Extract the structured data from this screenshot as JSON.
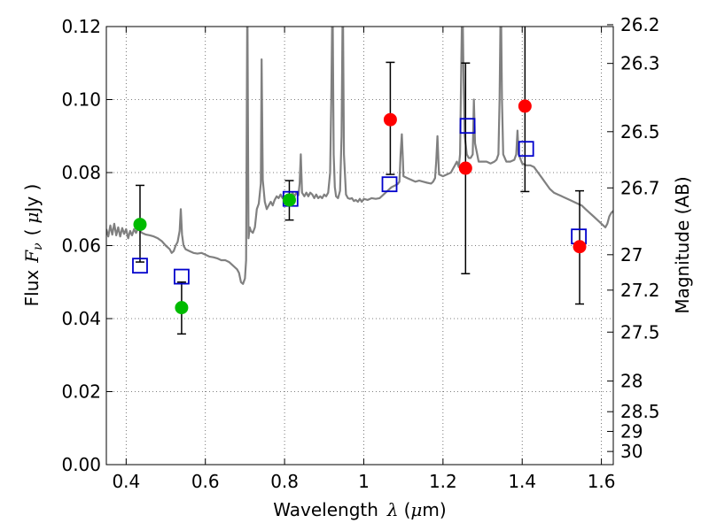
{
  "chart_data": {
    "type": "scatter",
    "xlabel": "Wavelength",
    "xlabel_symbol": "λ",
    "xlabel_unit_open": "(",
    "xlabel_unit_mu": "μ",
    "xlabel_unit_rest": "m)",
    "ylabel_prefix": "Flux",
    "ylabel_symbol": "F",
    "ylabel_symbol_sub": "ν",
    "ylabel_unit_open": "(",
    "ylabel_unit_mu": "μ",
    "ylabel_unit_rest": "Jy )",
    "y2label": "Magnitude (AB)",
    "xlim": [
      0.35,
      1.63
    ],
    "ylim": [
      0.0,
      0.12
    ],
    "grid": true,
    "x_ticks": [
      0.4,
      0.6,
      0.8,
      1.0,
      1.2,
      1.4,
      1.6
    ],
    "x_tick_labels": [
      "0.4",
      "0.6",
      "0.8",
      "1",
      "1.2",
      "1.4",
      "1.6"
    ],
    "y_ticks": [
      0.0,
      0.02,
      0.04,
      0.06,
      0.08,
      0.1,
      0.12
    ],
    "y_tick_labels": [
      "0.00",
      "0.02",
      "0.04",
      "0.06",
      "0.08",
      "0.10",
      "0.12"
    ],
    "y2_ticks": [
      {
        "label": "26.2",
        "flux": 0.1205
      },
      {
        "label": "26.3",
        "flux": 0.1099
      },
      {
        "label": "26.5",
        "flux": 0.0912
      },
      {
        "label": "26.7",
        "flux": 0.0758
      },
      {
        "label": "27",
        "flux": 0.0575
      },
      {
        "label": "27.2",
        "flux": 0.0478
      },
      {
        "label": "27.5",
        "flux": 0.0363
      },
      {
        "label": "28",
        "flux": 0.0229
      },
      {
        "label": "28.5",
        "flux": 0.0145
      },
      {
        "label": "29",
        "flux": 0.0091
      },
      {
        "label": "30",
        "flux": 0.0036
      }
    ],
    "series": [
      {
        "kind": "spectrum",
        "color": "#808080",
        "points": [
          [
            0.35,
            0.0645
          ],
          [
            0.355,
            0.0625
          ],
          [
            0.36,
            0.0655
          ],
          [
            0.365,
            0.063
          ],
          [
            0.37,
            0.066
          ],
          [
            0.375,
            0.0628
          ],
          [
            0.38,
            0.065
          ],
          [
            0.385,
            0.0625
          ],
          [
            0.39,
            0.0648
          ],
          [
            0.395,
            0.0632
          ],
          [
            0.4,
            0.0645
          ],
          [
            0.405,
            0.062
          ],
          [
            0.41,
            0.064
          ],
          [
            0.415,
            0.0628
          ],
          [
            0.42,
            0.0645
          ],
          [
            0.425,
            0.0635
          ],
          [
            0.43,
            0.0648
          ],
          [
            0.435,
            0.064
          ],
          [
            0.44,
            0.0635
          ],
          [
            0.45,
            0.063
          ],
          [
            0.46,
            0.0628
          ],
          [
            0.47,
            0.0625
          ],
          [
            0.48,
            0.062
          ],
          [
            0.49,
            0.0612
          ],
          [
            0.5,
            0.06
          ],
          [
            0.51,
            0.059
          ],
          [
            0.515,
            0.058
          ],
          [
            0.52,
            0.0585
          ],
          [
            0.525,
            0.06
          ],
          [
            0.53,
            0.061
          ],
          [
            0.535,
            0.064
          ],
          [
            0.538,
            0.07
          ],
          [
            0.541,
            0.063
          ],
          [
            0.545,
            0.06
          ],
          [
            0.55,
            0.059
          ],
          [
            0.56,
            0.0585
          ],
          [
            0.57,
            0.058
          ],
          [
            0.58,
            0.0578
          ],
          [
            0.59,
            0.058
          ],
          [
            0.6,
            0.0575
          ],
          [
            0.61,
            0.057
          ],
          [
            0.62,
            0.0568
          ],
          [
            0.63,
            0.0565
          ],
          [
            0.64,
            0.056
          ],
          [
            0.65,
            0.056
          ],
          [
            0.66,
            0.0555
          ],
          [
            0.67,
            0.0545
          ],
          [
            0.68,
            0.0535
          ],
          [
            0.685,
            0.0525
          ],
          [
            0.69,
            0.05
          ],
          [
            0.695,
            0.0495
          ],
          [
            0.7,
            0.051
          ],
          [
            0.703,
            0.056
          ],
          [
            0.706,
            0.13
          ],
          [
            0.709,
            0.062
          ],
          [
            0.712,
            0.065
          ],
          [
            0.715,
            0.064
          ],
          [
            0.72,
            0.0635
          ],
          [
            0.725,
            0.065
          ],
          [
            0.73,
            0.07
          ],
          [
            0.735,
            0.0715
          ],
          [
            0.74,
            0.077
          ],
          [
            0.742,
            0.111
          ],
          [
            0.745,
            0.078
          ],
          [
            0.75,
            0.072
          ],
          [
            0.755,
            0.07
          ],
          [
            0.76,
            0.071
          ],
          [
            0.765,
            0.072
          ],
          [
            0.77,
            0.071
          ],
          [
            0.775,
            0.0725
          ],
          [
            0.78,
            0.0735
          ],
          [
            0.785,
            0.073
          ],
          [
            0.79,
            0.074
          ],
          [
            0.795,
            0.073
          ],
          [
            0.8,
            0.0735
          ],
          [
            0.805,
            0.0728
          ],
          [
            0.81,
            0.074
          ],
          [
            0.815,
            0.073
          ],
          [
            0.82,
            0.0745
          ],
          [
            0.825,
            0.0735
          ],
          [
            0.83,
            0.0745
          ],
          [
            0.835,
            0.0738
          ],
          [
            0.838,
            0.077
          ],
          [
            0.841,
            0.085
          ],
          [
            0.844,
            0.0745
          ],
          [
            0.85,
            0.0735
          ],
          [
            0.855,
            0.0745
          ],
          [
            0.86,
            0.0735
          ],
          [
            0.865,
            0.0745
          ],
          [
            0.87,
            0.074
          ],
          [
            0.875,
            0.073
          ],
          [
            0.88,
            0.074
          ],
          [
            0.885,
            0.073
          ],
          [
            0.89,
            0.0735
          ],
          [
            0.895,
            0.073
          ],
          [
            0.9,
            0.074
          ],
          [
            0.905,
            0.0735
          ],
          [
            0.91,
            0.0745
          ],
          [
            0.915,
            0.08
          ],
          [
            0.918,
            0.1
          ],
          [
            0.921,
            0.13
          ],
          [
            0.924,
            0.085
          ],
          [
            0.927,
            0.076
          ],
          [
            0.93,
            0.0735
          ],
          [
            0.935,
            0.073
          ],
          [
            0.94,
            0.075
          ],
          [
            0.944,
            0.09
          ],
          [
            0.947,
            0.13
          ],
          [
            0.95,
            0.085
          ],
          [
            0.955,
            0.074
          ],
          [
            0.96,
            0.073
          ],
          [
            0.965,
            0.0728
          ],
          [
            0.97,
            0.073
          ],
          [
            0.975,
            0.0722
          ],
          [
            0.98,
            0.0725
          ],
          [
            0.985,
            0.072
          ],
          [
            0.99,
            0.0728
          ],
          [
            0.995,
            0.072
          ],
          [
            1.0,
            0.0728
          ],
          [
            1.01,
            0.0725
          ],
          [
            1.02,
            0.073
          ],
          [
            1.03,
            0.0728
          ],
          [
            1.04,
            0.073
          ],
          [
            1.05,
            0.074
          ],
          [
            1.06,
            0.075
          ],
          [
            1.07,
            0.076
          ],
          [
            1.08,
            0.0765
          ],
          [
            1.085,
            0.0768
          ],
          [
            1.09,
            0.0775
          ],
          [
            1.093,
            0.085
          ],
          [
            1.096,
            0.0905
          ],
          [
            1.099,
            0.083
          ],
          [
            1.1,
            0.079
          ],
          [
            1.11,
            0.0785
          ],
          [
            1.12,
            0.078
          ],
          [
            1.13,
            0.0775
          ],
          [
            1.14,
            0.0778
          ],
          [
            1.15,
            0.0775
          ],
          [
            1.16,
            0.0772
          ],
          [
            1.17,
            0.077
          ],
          [
            1.175,
            0.0775
          ],
          [
            1.18,
            0.0785
          ],
          [
            1.183,
            0.083
          ],
          [
            1.186,
            0.09
          ],
          [
            1.189,
            0.082
          ],
          [
            1.19,
            0.0795
          ],
          [
            1.2,
            0.079
          ],
          [
            1.21,
            0.0795
          ],
          [
            1.22,
            0.08
          ],
          [
            1.225,
            0.081
          ],
          [
            1.23,
            0.082
          ],
          [
            1.235,
            0.083
          ],
          [
            1.24,
            0.0815
          ],
          [
            1.243,
            0.085
          ],
          [
            1.246,
            0.108
          ],
          [
            1.249,
            0.13
          ],
          [
            1.252,
            0.105
          ],
          [
            1.255,
            0.09
          ],
          [
            1.26,
            0.085
          ],
          [
            1.265,
            0.084
          ],
          [
            1.27,
            0.084
          ],
          [
            1.275,
            0.085
          ],
          [
            1.278,
            0.1
          ],
          [
            1.281,
            0.088
          ],
          [
            1.29,
            0.083
          ],
          [
            1.3,
            0.083
          ],
          [
            1.31,
            0.083
          ],
          [
            1.32,
            0.0825
          ],
          [
            1.33,
            0.083
          ],
          [
            1.335,
            0.0835
          ],
          [
            1.34,
            0.085
          ],
          [
            1.343,
            0.1
          ],
          [
            1.346,
            0.13
          ],
          [
            1.349,
            0.1
          ],
          [
            1.352,
            0.085
          ],
          [
            1.36,
            0.083
          ],
          [
            1.37,
            0.083
          ],
          [
            1.38,
            0.0835
          ],
          [
            1.385,
            0.085
          ],
          [
            1.388,
            0.0915
          ],
          [
            1.391,
            0.085
          ],
          [
            1.4,
            0.0825
          ],
          [
            1.41,
            0.082
          ],
          [
            1.42,
            0.082
          ],
          [
            1.43,
            0.0815
          ],
          [
            1.44,
            0.08
          ],
          [
            1.45,
            0.0785
          ],
          [
            1.46,
            0.077
          ],
          [
            1.47,
            0.0755
          ],
          [
            1.48,
            0.0745
          ],
          [
            1.49,
            0.074
          ],
          [
            1.5,
            0.0735
          ],
          [
            1.51,
            0.073
          ],
          [
            1.52,
            0.0725
          ],
          [
            1.53,
            0.072
          ],
          [
            1.54,
            0.0715
          ],
          [
            1.55,
            0.071
          ],
          [
            1.56,
            0.07
          ],
          [
            1.57,
            0.069
          ],
          [
            1.58,
            0.068
          ],
          [
            1.59,
            0.067
          ],
          [
            1.6,
            0.066
          ],
          [
            1.61,
            0.065
          ],
          [
            1.615,
            0.066
          ],
          [
            1.62,
            0.068
          ],
          [
            1.625,
            0.069
          ],
          [
            1.63,
            0.0695
          ]
        ]
      },
      {
        "kind": "model-boxes",
        "color": "#0000cc",
        "points": [
          {
            "x": 0.435,
            "y": 0.0545
          },
          {
            "x": 0.54,
            "y": 0.0515
          },
          {
            "x": 0.815,
            "y": 0.0728
          },
          {
            "x": 1.065,
            "y": 0.0768
          },
          {
            "x": 1.262,
            "y": 0.0928
          },
          {
            "x": 1.41,
            "y": 0.0865
          },
          {
            "x": 1.543,
            "y": 0.0625
          }
        ]
      },
      {
        "kind": "measured-green",
        "color": "#00bb00",
        "points": [
          {
            "x": 0.435,
            "y": 0.0658,
            "lo": 0.0555,
            "hi": 0.0765
          },
          {
            "x": 0.54,
            "y": 0.043,
            "lo": 0.0358,
            "hi": 0.05
          },
          {
            "x": 0.812,
            "y": 0.0725,
            "lo": 0.067,
            "hi": 0.0778
          }
        ]
      },
      {
        "kind": "measured-red",
        "color": "#ff0000",
        "points": [
          {
            "x": 1.067,
            "y": 0.0945,
            "lo": 0.0795,
            "hi": 0.1102
          },
          {
            "x": 1.257,
            "y": 0.0812,
            "lo": 0.0523,
            "hi": 0.11
          },
          {
            "x": 1.407,
            "y": 0.0982,
            "lo": 0.0748,
            "hi": 0.121
          },
          {
            "x": 1.545,
            "y": 0.0597,
            "lo": 0.044,
            "hi": 0.075
          }
        ]
      }
    ]
  }
}
